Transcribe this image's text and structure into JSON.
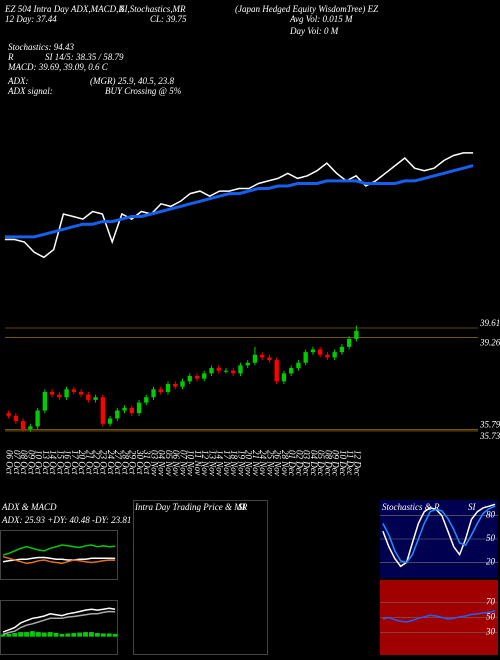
{
  "chart_data": [
    {
      "type": "line",
      "annotations": [
        "EZ 504 Intra Day ADX,MACD,R",
        "SI,Stochastics,MR",
        "(Japan Hedged Equity WisdomTree) EZ",
        "12 Day: 37.44",
        "CL: 39.75",
        "Avg Vol: 0.015 M",
        "Day Vol: 0 M",
        "Stochastics: 94.43",
        "R",
        "SI 14/5: 38.35 / 58.79",
        "MACD: 39.69, 39.09, 0.6 C",
        "ADX:",
        "(MGR) 25.9, 40.5, 23.8",
        "ADX signal:",
        "BUY Crossing @ 5%"
      ],
      "ylim": [
        35,
        40.5
      ],
      "series": [
        {
          "name": "Price",
          "color": "#ffffff",
          "values": [
            36.2,
            36.2,
            36.1,
            35.7,
            35.5,
            35.8,
            37.2,
            37.1,
            37.0,
            37.3,
            37.2,
            36.1,
            37.2,
            37.0,
            37.3,
            37.2,
            37.6,
            37.5,
            37.7,
            38.0,
            38.1,
            37.9,
            38.1,
            38.1,
            38.2,
            38.2,
            38.4,
            38.5,
            38.6,
            38.8,
            38.6,
            38.7,
            38.9,
            39.2,
            38.8,
            38.5,
            38.7,
            38.3,
            38.5,
            38.8,
            39.1,
            39.4,
            39.0,
            38.9,
            39.0,
            39.3,
            39.5,
            39.6,
            39.6
          ]
        },
        {
          "name": "MA",
          "color": "#1560f0",
          "values": [
            36.3,
            36.3,
            36.3,
            36.3,
            36.4,
            36.5,
            36.6,
            36.7,
            36.8,
            36.8,
            36.9,
            36.9,
            37.0,
            37.1,
            37.1,
            37.2,
            37.3,
            37.4,
            37.5,
            37.6,
            37.7,
            37.8,
            37.9,
            38.0,
            38.0,
            38.1,
            38.2,
            38.2,
            38.3,
            38.3,
            38.4,
            38.4,
            38.4,
            38.5,
            38.5,
            38.5,
            38.5,
            38.4,
            38.4,
            38.4,
            38.4,
            38.5,
            38.5,
            38.6,
            38.7,
            38.8,
            38.9,
            39.0,
            39.1
          ]
        }
      ]
    },
    {
      "type": "candlestick",
      "categories": [
        "06 Oct",
        "07 Oct",
        "08 Oct",
        "09 Oct",
        "10 Oct",
        "13 Oct",
        "14 Oct",
        "15 Oct",
        "16 Oct",
        "17 Oct",
        "20 Oct",
        "21 Oct",
        "22 Oct",
        "23 Oct",
        "24 Oct",
        "27 Oct",
        "28 Oct",
        "29 Oct",
        "30 Oct",
        "31 Oct",
        "03 Nov",
        "04 Nov",
        "05 Nov",
        "06 Nov",
        "07 Nov",
        "10 Nov",
        "11 Nov",
        "12 Nov",
        "13 Nov",
        "14 Nov",
        "17 Nov",
        "18 Nov",
        "19 Nov",
        "20 Nov",
        "21 Nov",
        "24 Nov",
        "25 Nov",
        "26 Nov",
        "28 Nov",
        "01 Dec",
        "02 Dec",
        "03 Dec",
        "04 Dec",
        "05 Dec",
        "08 Dec",
        "09 Dec",
        "10 Dec",
        "11 Dec",
        "12 Dec"
      ],
      "open": [
        36.4,
        36.3,
        36.1,
        35.8,
        35.9,
        36.5,
        37.2,
        37.1,
        37.0,
        37.3,
        37.2,
        37.1,
        36.9,
        37.0,
        36.0,
        36.2,
        36.5,
        36.6,
        36.4,
        36.8,
        37.0,
        37.3,
        37.2,
        37.5,
        37.4,
        37.6,
        37.8,
        37.7,
        37.9,
        38.1,
        38.0,
        38.0,
        37.9,
        38.2,
        38.3,
        38.6,
        38.5,
        38.4,
        37.6,
        37.9,
        38.1,
        38.3,
        38.7,
        38.8,
        38.6,
        38.5,
        38.7,
        38.9,
        39.2
      ],
      "high": [
        36.5,
        36.4,
        36.2,
        36.0,
        36.6,
        37.3,
        37.3,
        37.2,
        37.4,
        37.4,
        37.3,
        37.2,
        37.1,
        37.1,
        36.3,
        36.6,
        36.7,
        36.7,
        36.9,
        37.1,
        37.4,
        37.4,
        37.6,
        37.6,
        37.7,
        37.9,
        37.9,
        38.0,
        38.2,
        38.2,
        38.1,
        38.1,
        38.3,
        38.4,
        38.9,
        38.7,
        38.6,
        38.5,
        38.0,
        38.2,
        38.4,
        38.8,
        38.9,
        38.9,
        38.7,
        38.8,
        39.0,
        39.3,
        39.7
      ],
      "low": [
        36.2,
        36.0,
        35.7,
        35.7,
        35.8,
        36.4,
        37.0,
        36.9,
        36.9,
        37.1,
        37.0,
        36.8,
        36.8,
        35.9,
        35.9,
        36.1,
        36.4,
        36.3,
        36.3,
        36.7,
        36.9,
        37.1,
        37.1,
        37.3,
        37.3,
        37.5,
        37.6,
        37.6,
        37.8,
        37.9,
        37.9,
        37.8,
        37.8,
        38.1,
        38.2,
        38.4,
        38.3,
        37.5,
        37.5,
        37.8,
        38.0,
        38.2,
        38.6,
        38.5,
        38.4,
        38.4,
        38.6,
        38.8,
        39.1
      ],
      "close": [
        36.3,
        36.1,
        35.8,
        35.9,
        36.5,
        37.2,
        37.1,
        37.0,
        37.3,
        37.2,
        37.1,
        36.9,
        37.0,
        36.0,
        36.2,
        36.5,
        36.6,
        36.4,
        36.8,
        37.0,
        37.3,
        37.2,
        37.5,
        37.4,
        37.6,
        37.8,
        37.7,
        37.9,
        38.1,
        38.0,
        38.0,
        37.9,
        38.2,
        38.3,
        38.6,
        38.5,
        38.4,
        37.6,
        37.9,
        38.1,
        38.3,
        38.7,
        38.8,
        38.6,
        38.5,
        38.7,
        38.9,
        39.2,
        39.5
      ],
      "up_color": "#00cc00",
      "down_color": "#ff0000",
      "grid_color": "#b8860b",
      "ylim": [
        35.2,
        40.1
      ],
      "yticks": [
        39.61,
        39.26,
        35.79,
        35.73
      ]
    },
    {
      "type": "line",
      "title": "ADX & MACD",
      "subtitle": "ADX: 25.93 +DY: 40.48 -DY: 23.81",
      "ylim": [
        0,
        60
      ],
      "series": [
        {
          "name": "ADX",
          "color": "#ffffff",
          "values": [
            22,
            23,
            24,
            25,
            25,
            26,
            27,
            27,
            26,
            25,
            25,
            24,
            24,
            25,
            25,
            26,
            26,
            26,
            26,
            25.9
          ]
        },
        {
          "name": "+DY",
          "color": "#00cc00",
          "values": [
            30,
            32,
            35,
            38,
            40,
            38,
            36,
            35,
            38,
            40,
            42,
            41,
            40,
            39,
            41,
            42,
            40,
            41,
            40,
            40.5
          ]
        },
        {
          "name": "-DY",
          "color": "#e07020",
          "values": [
            28,
            26,
            24,
            22,
            20,
            21,
            23,
            24,
            22,
            21,
            20,
            22,
            24,
            23,
            22,
            21,
            22,
            23,
            24,
            23.8
          ]
        }
      ]
    },
    {
      "type": "line",
      "ylim": [
        -0.4,
        0.8
      ],
      "series": [
        {
          "name": "Histogram",
          "style": "bar",
          "color": "#00cc00",
          "values": [
            0.05,
            0.06,
            0.08,
            0.1,
            0.1,
            0.12,
            0.1,
            0.09,
            0.1,
            0.08,
            0.06,
            0.07,
            0.08,
            0.09,
            0.1,
            0.1,
            0.08,
            0.07,
            0.07,
            0.06
          ]
        },
        {
          "name": "MACD",
          "color": "#ffffff",
          "values": [
            0.1,
            0.15,
            0.2,
            0.3,
            0.35,
            0.4,
            0.42,
            0.45,
            0.5,
            0.48,
            0.46,
            0.5,
            0.52,
            0.55,
            0.58,
            0.6,
            0.58,
            0.6,
            0.62,
            0.6
          ]
        },
        {
          "name": "Signal",
          "color": "#aaaaaa",
          "values": [
            0.05,
            0.09,
            0.12,
            0.2,
            0.25,
            0.28,
            0.32,
            0.36,
            0.4,
            0.4,
            0.4,
            0.43,
            0.44,
            0.46,
            0.48,
            0.5,
            0.5,
            0.53,
            0.55,
            0.54
          ]
        }
      ]
    },
    {
      "type": "line",
      "title": "Intra Day Trading Price & MR",
      "subtitle": "SI",
      "series": []
    },
    {
      "type": "line",
      "title": "Stochastics & R",
      "subtitle": "SI",
      "background": "#000050",
      "ylim": [
        0,
        100
      ],
      "yticks": [
        20,
        50,
        80
      ],
      "series": [
        {
          "name": "%K",
          "color": "#ffffff",
          "values": [
            60,
            40,
            25,
            15,
            20,
            45,
            70,
            85,
            90,
            88,
            80,
            60,
            40,
            30,
            50,
            75,
            85,
            90,
            92,
            94.43
          ]
        },
        {
          "name": "%D",
          "color": "#1e90ff",
          "values": [
            70,
            55,
            35,
            22,
            20,
            30,
            50,
            70,
            85,
            88,
            86,
            76,
            62,
            45,
            42,
            55,
            70,
            83,
            89,
            92
          ]
        }
      ]
    },
    {
      "type": "line",
      "background": "#a00000",
      "ylim": [
        0,
        100
      ],
      "yticks": [
        30,
        50,
        70
      ],
      "series": [
        {
          "name": "RSI",
          "color": "#1e60ff",
          "values": [
            48,
            50,
            47,
            45,
            44,
            46,
            49,
            51,
            53,
            52,
            50,
            48,
            49,
            51,
            52,
            54,
            55,
            56,
            57,
            58.79
          ]
        }
      ]
    }
  ]
}
